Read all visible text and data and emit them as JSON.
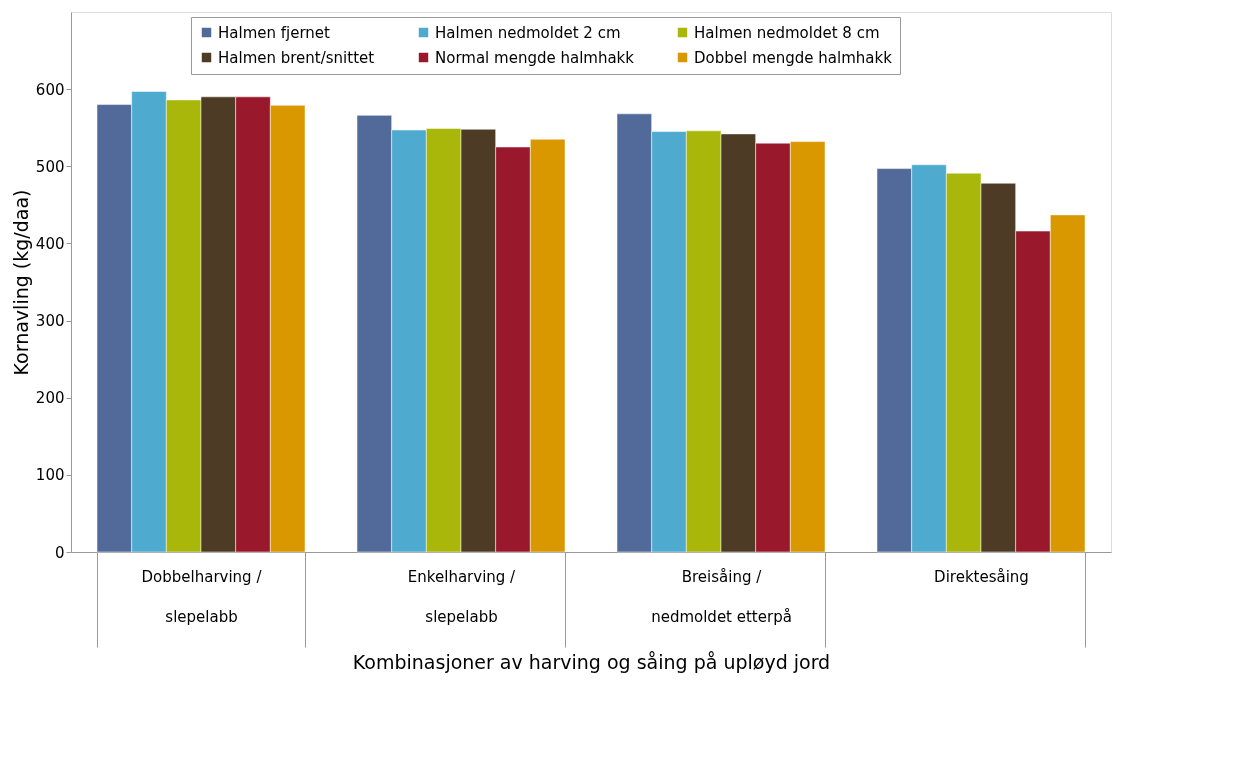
{
  "chart_data": {
    "type": "bar",
    "xlabel": "Kombinasjoner av harving og såing på upløyd jord",
    "ylabel": "Kornavling (kg/daa)",
    "categories": [
      "Dobbelharving /\nslepelabb",
      "Enkelharving /\nslepelabb",
      "Breisåing /\nnedmoldet etterpå",
      "Direktesåing"
    ],
    "series": [
      {
        "name": "Halmen fjernet",
        "color": "#516a99",
        "values": [
          580,
          566,
          568,
          497
        ]
      },
      {
        "name": "Halmen nedmoldet 2 cm",
        "color": "#4eabcf",
        "values": [
          597,
          547,
          545,
          502
        ]
      },
      {
        "name": "Halmen nedmoldet 8 cm",
        "color": "#a8b70a",
        "values": [
          586,
          549,
          546,
          491
        ]
      },
      {
        "name": "Halmen brent/snittet",
        "color": "#4d3b25",
        "values": [
          590,
          548,
          542,
          478
        ]
      },
      {
        "name": "Normal mengde halmhakk",
        "color": "#99182c",
        "values": [
          590,
          525,
          530,
          416
        ]
      },
      {
        "name": "Dobbel mengde halmhakk",
        "color": "#d99700",
        "values": [
          579,
          535,
          532,
          437
        ]
      }
    ],
    "ylim": [
      0,
      700
    ],
    "yticks": [
      0,
      100,
      200,
      300,
      400,
      500,
      600
    ],
    "grid": false,
    "legend": "top"
  }
}
